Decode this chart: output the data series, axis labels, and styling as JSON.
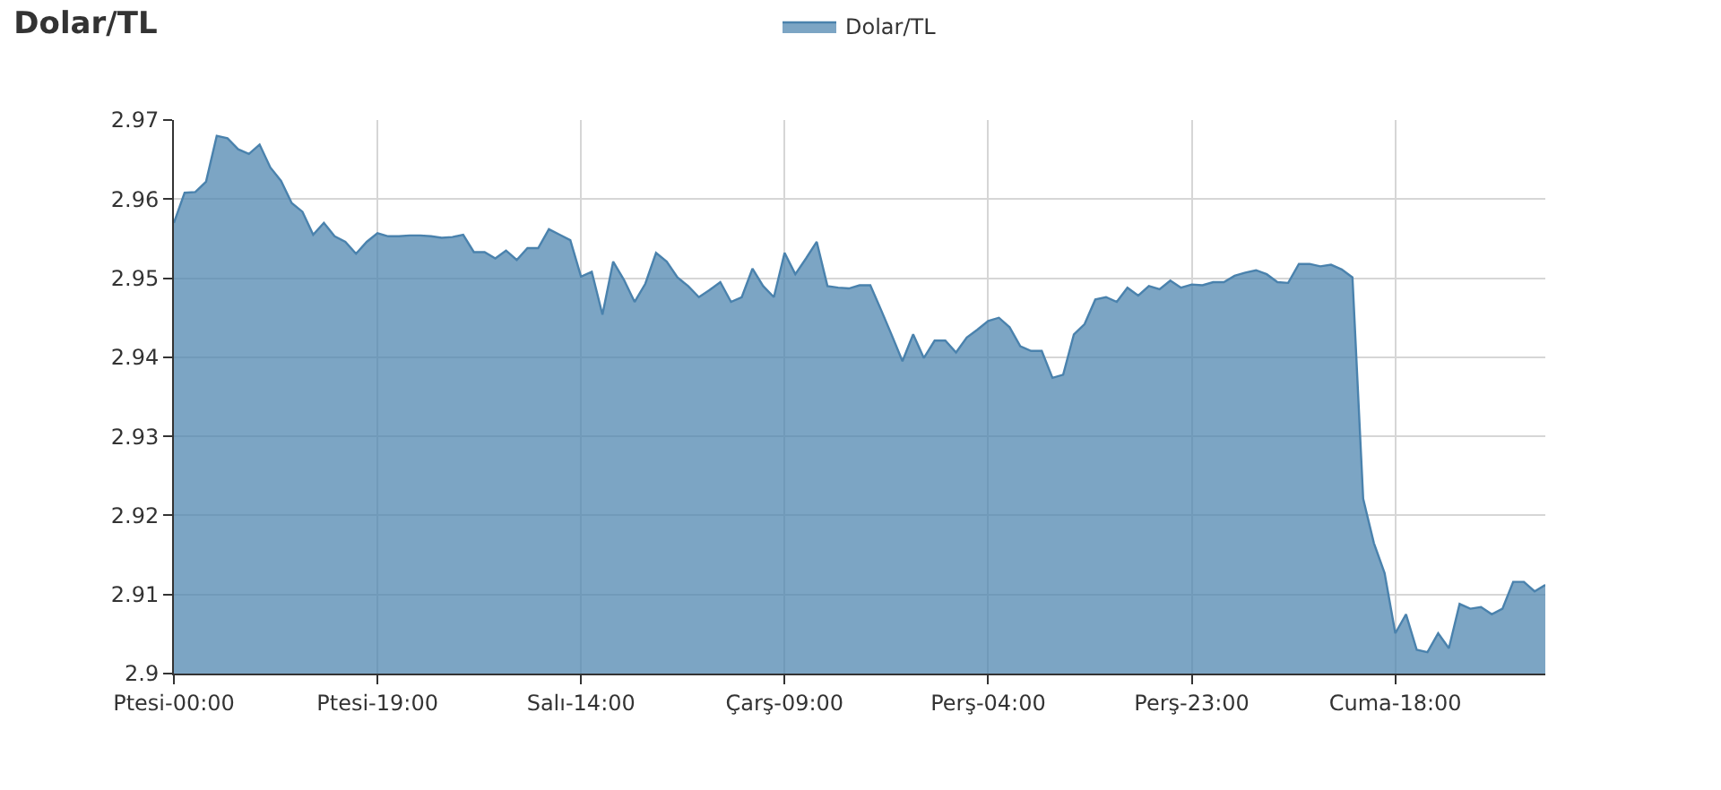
{
  "chart_data": {
    "type": "area",
    "title": "Dolar/TL",
    "categories": [
      "Ptesi-00:00",
      null,
      null,
      null,
      null,
      null,
      null,
      null,
      null,
      null,
      null,
      null,
      null,
      null,
      null,
      null,
      null,
      null,
      null,
      "Ptesi-19:00",
      null,
      null,
      null,
      null,
      null,
      null,
      null,
      null,
      null,
      null,
      null,
      null,
      null,
      null,
      null,
      null,
      null,
      null,
      "Salı-14:00",
      null,
      null,
      null,
      null,
      null,
      null,
      null,
      null,
      null,
      null,
      null,
      null,
      null,
      null,
      null,
      null,
      null,
      null,
      "Çarş-09:00",
      null,
      null,
      null,
      null,
      null,
      null,
      null,
      null,
      null,
      null,
      null,
      null,
      null,
      null,
      null,
      null,
      null,
      null,
      "Perş-04:00",
      null,
      null,
      null,
      null,
      null,
      null,
      null,
      null,
      null,
      null,
      null,
      null,
      null,
      null,
      null,
      null,
      null,
      null,
      "Perş-23:00",
      null,
      null,
      null,
      null,
      null,
      null,
      null,
      null,
      null,
      null,
      null,
      null,
      null,
      null,
      null,
      null,
      null,
      null,
      "Cuma-18:00",
      null,
      null,
      null,
      null,
      null,
      null,
      null,
      null,
      null,
      null,
      null,
      null,
      null,
      null
    ],
    "series": [
      {
        "name": "Dolar/TL",
        "color": "#4a82ad",
        "values": [
          2.957,
          2.9608,
          2.9609,
          2.9622,
          2.968,
          2.9677,
          2.9663,
          2.9657,
          2.9669,
          2.964,
          2.9623,
          2.9595,
          2.9584,
          2.9555,
          2.957,
          2.9553,
          2.9546,
          2.9531,
          2.9546,
          2.9557,
          2.9553,
          2.9553,
          2.9554,
          2.9554,
          2.9553,
          2.9551,
          2.9552,
          2.9555,
          2.9533,
          2.9533,
          2.9525,
          2.9535,
          2.9523,
          2.9538,
          2.9538,
          2.9562,
          2.9555,
          2.9548,
          2.9502,
          2.9508,
          2.9454,
          2.9521,
          2.9498,
          2.947,
          2.9493,
          2.9532,
          2.9521,
          2.9501,
          2.949,
          2.9476,
          2.9485,
          2.9495,
          2.947,
          2.9476,
          2.9512,
          2.949,
          2.9476,
          2.9532,
          2.9505,
          2.9525,
          2.9546,
          2.949,
          2.9488,
          2.9487,
          2.9491,
          2.9491,
          2.946,
          2.9428,
          2.9395,
          2.9429,
          2.9399,
          2.9421,
          2.9421,
          2.9406,
          2.9425,
          2.9435,
          2.9446,
          2.945,
          2.9438,
          2.9414,
          2.9408,
          2.9408,
          2.9374,
          2.9378,
          2.9429,
          2.9442,
          2.9473,
          2.9476,
          2.947,
          2.9488,
          2.9478,
          2.949,
          2.9486,
          2.9497,
          2.9488,
          2.9492,
          2.9491,
          2.9495,
          2.9495,
          2.9503,
          2.9507,
          2.951,
          2.9505,
          2.9495,
          2.9494,
          2.9518,
          2.9518,
          2.9515,
          2.9517,
          2.9511,
          2.9501,
          2.9221,
          2.9165,
          2.9127,
          2.9051,
          2.9075,
          2.903,
          2.9027,
          2.9051,
          2.9032,
          2.9088,
          2.9082,
          2.9084,
          2.9075,
          2.9082,
          2.9116,
          2.9116,
          2.9104,
          2.9112
        ]
      }
    ],
    "ylim": [
      2.9,
      2.97
    ],
    "yticks": [
      2.9,
      2.91,
      2.92,
      2.93,
      2.94,
      2.95,
      2.96,
      2.97
    ],
    "grid": true,
    "legend": "top",
    "line_style": "solid"
  }
}
